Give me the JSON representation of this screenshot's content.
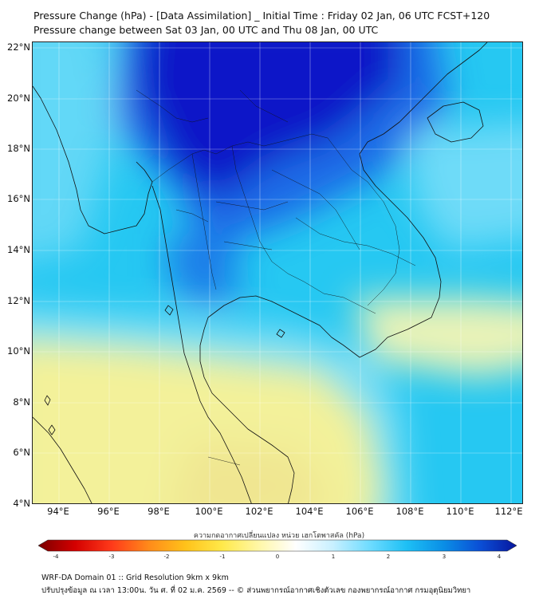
{
  "titles": {
    "line1": "Pressure Change (hPa) - [Data Assimilation] _ Initial Time : Friday 02 Jan, 06 UTC FCST+120",
    "line2": "Pressure change between Sat 03 Jan, 00 UTC and Thu 08 Jan, 00 UTC"
  },
  "axes": {
    "lat_labels": [
      "22°N",
      "20°N",
      "18°N",
      "16°N",
      "14°N",
      "12°N",
      "10°N",
      "8°N",
      "6°N",
      "4°N"
    ],
    "lon_labels": [
      "94°E",
      "96°E",
      "98°E",
      "100°E",
      "102°E",
      "104°E",
      "106°E",
      "108°E",
      "110°E",
      "112°E"
    ]
  },
  "colorbar": {
    "title": "ความกดอากาศเปลี่ยนแปลง หน่วย เฮกโตพาสคัล (hPa)",
    "ticks": [
      "-4",
      "-3",
      "-2",
      "-1",
      "0",
      "1",
      "2",
      "3",
      "4"
    ],
    "colors_low_to_high": [
      "#7a0000",
      "#d40000",
      "#ff3a1a",
      "#ff8a1a",
      "#ffc21a",
      "#ffe94a",
      "#fff7a8",
      "#ffffff",
      "#c8f0ff",
      "#6fdcff",
      "#1ec0f5",
      "#0a8fe6",
      "#0a4fd6",
      "#08169e"
    ]
  },
  "map_colors": {
    "deep_blue": "#0b14c8",
    "blue": "#1a6be6",
    "cyan": "#26c8f2",
    "light_cyan": "#9ee8fb",
    "pale": "#e9fafc",
    "pale_yellow": "#fff7b0",
    "yellow": "#fbe94a",
    "gold": "#f6d63a"
  },
  "footer": {
    "line1": "WRF-DA Domain 01 :: Grid Resolution 9km x 9km",
    "line2": "ปรับปรุงข้อมูล ณ เวลา 13:00น. วัน ศ. ที่ 02 ม.ค. 2569 -- © ส่วนพยากรณ์อากาศเชิงตัวเลข กองพยากรณ์อากาศ กรมอุตุนิยมวิทยา"
  }
}
